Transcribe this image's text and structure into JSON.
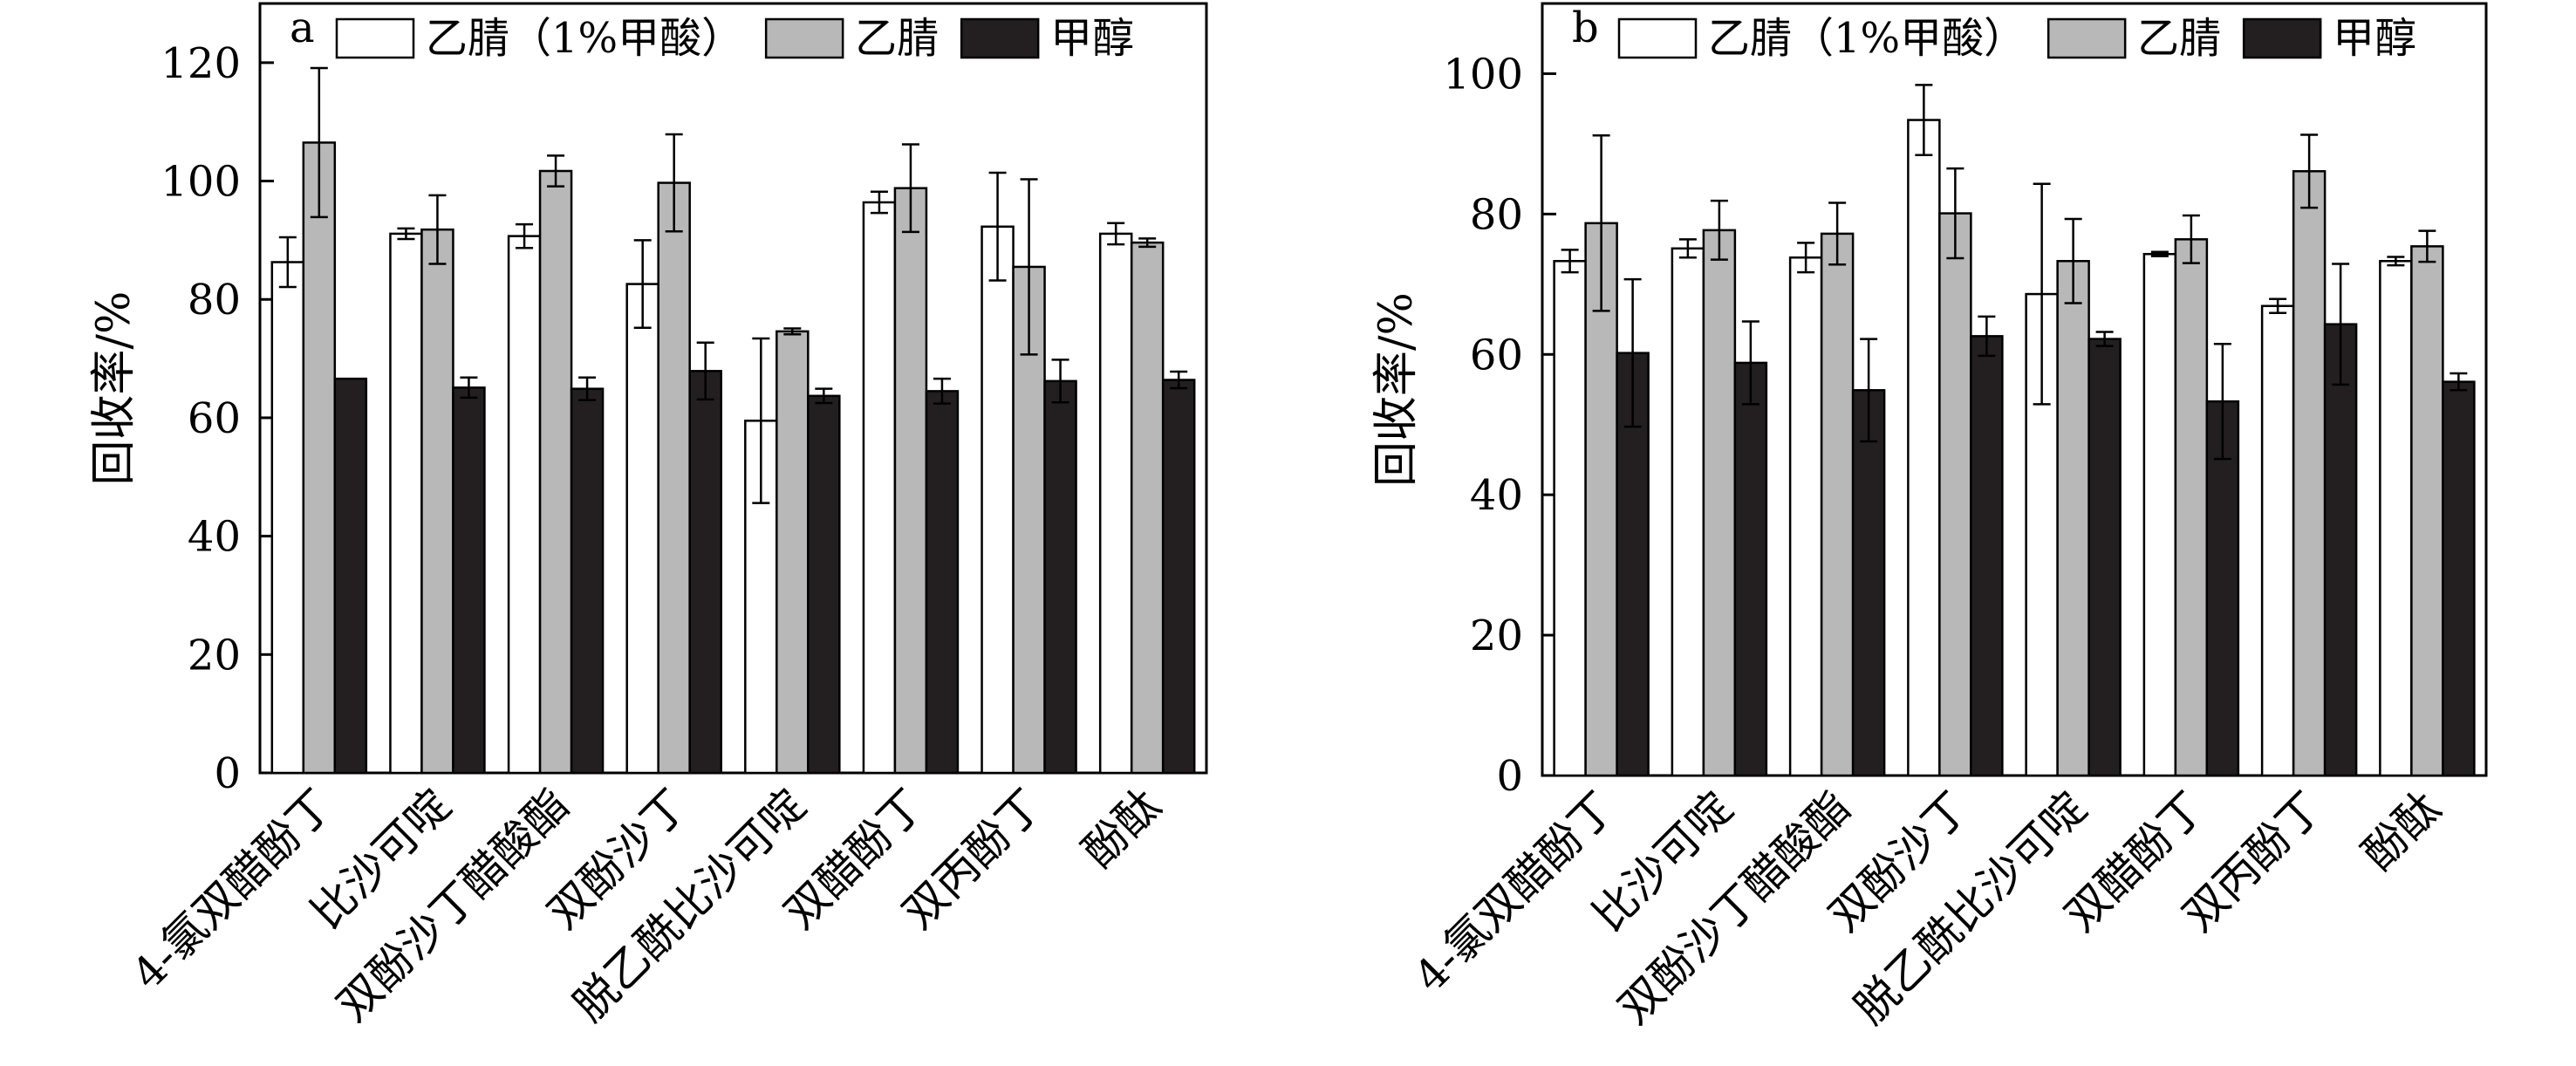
{
  "legend": {
    "items": [
      {
        "label": "乙腈（1%甲酸）",
        "color": "#ffffff"
      },
      {
        "label": "乙腈",
        "color": "#b8b8b8"
      },
      {
        "label": "甲醇",
        "color": "#231f20"
      }
    ]
  },
  "chart_data": [
    {
      "type": "bar",
      "panel_label": "a",
      "title": "",
      "xlabel": "",
      "ylabel": "回收率/%",
      "ylim": [
        0,
        130
      ],
      "yticks": [
        0,
        20,
        40,
        60,
        80,
        100,
        120
      ],
      "grid": false,
      "legend_position": "top",
      "categories": [
        "4-氯双醋酚丁",
        "比沙可啶",
        "双酚沙丁醋酸酯",
        "双酚沙丁",
        "脱乙酰比沙可啶",
        "双醋酚丁",
        "双丙酚丁",
        "酚酞"
      ],
      "series": [
        {
          "name": "乙腈（1%甲酸）",
          "color": "#ffffff",
          "values": [
            86.3,
            91.1,
            90.7,
            82.6,
            59.5,
            96.4,
            92.3,
            91.1
          ],
          "errors": [
            4.2,
            0.9,
            2.0,
            7.4,
            13.9,
            1.8,
            9.1,
            1.8
          ]
        },
        {
          "name": "乙腈",
          "color": "#b8b8b8",
          "values": [
            106.5,
            91.8,
            101.7,
            99.7,
            74.6,
            98.8,
            85.5,
            89.6
          ],
          "errors": [
            12.6,
            5.8,
            2.6,
            8.2,
            0.5,
            7.4,
            14.8,
            0.7
          ]
        },
        {
          "name": "甲醇",
          "color": "#231f20",
          "values": [
            66.6,
            65.1,
            64.9,
            67.9,
            63.7,
            64.5,
            66.2,
            66.4
          ],
          "errors": [
            0,
            1.7,
            1.9,
            4.8,
            1.2,
            2.1,
            3.6,
            1.4
          ]
        }
      ]
    },
    {
      "type": "bar",
      "panel_label": "b",
      "title": "",
      "xlabel": "",
      "ylabel": "回收率/%",
      "ylim": [
        0,
        110
      ],
      "yticks": [
        0,
        20,
        40,
        60,
        80,
        100
      ],
      "grid": false,
      "legend_position": "top",
      "categories": [
        "4-氯双醋酚丁",
        "比沙可啶",
        "双酚沙丁醋酸酯",
        "双酚沙丁",
        "脱乙酰比沙可啶",
        "双醋酚丁",
        "双丙酚丁",
        "酚酞"
      ],
      "series": [
        {
          "name": "乙腈（1%甲酸）",
          "color": "#ffffff",
          "values": [
            73.3,
            75.1,
            73.8,
            93.4,
            68.6,
            74.3,
            66.9,
            73.3
          ],
          "errors": [
            1.6,
            1.3,
            2.1,
            5.0,
            15.7,
            0.3,
            1.0,
            0.6
          ]
        },
        {
          "name": "乙腈",
          "color": "#b8b8b8",
          "values": [
            78.7,
            77.7,
            77.2,
            80.1,
            73.3,
            76.4,
            86.1,
            75.4
          ],
          "errors": [
            12.5,
            4.2,
            4.4,
            6.4,
            6.0,
            3.4,
            5.2,
            2.2
          ]
        },
        {
          "name": "甲醇",
          "color": "#231f20",
          "values": [
            60.2,
            58.8,
            54.9,
            62.6,
            62.2,
            53.3,
            64.3,
            56.1
          ],
          "errors": [
            10.5,
            5.9,
            7.3,
            2.8,
            1.0,
            8.2,
            8.6,
            1.2
          ]
        }
      ]
    }
  ]
}
